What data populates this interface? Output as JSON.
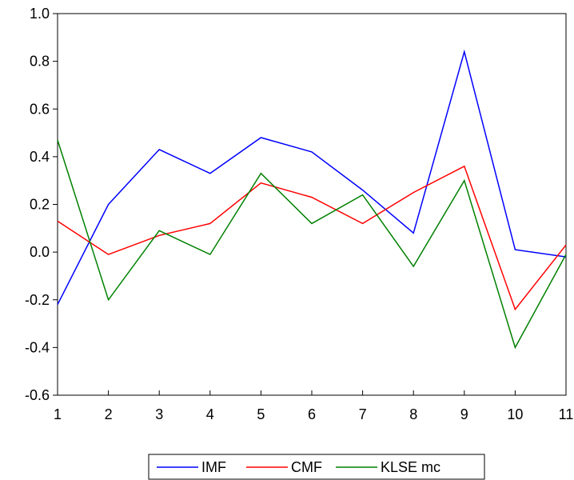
{
  "chart_data": {
    "type": "line",
    "title": "",
    "xlabel": "",
    "ylabel": "",
    "x": [
      1,
      2,
      3,
      4,
      5,
      6,
      7,
      8,
      9,
      10,
      11
    ],
    "xlim": [
      1,
      11
    ],
    "ylim": [
      -0.6,
      1.0
    ],
    "yticks": [
      -0.6,
      -0.4,
      -0.2,
      0.0,
      0.2,
      0.4,
      0.6,
      0.8,
      1.0
    ],
    "ytick_labels": [
      "-0.6",
      "-0.4",
      "-0.2",
      "0.0",
      "0.2",
      "0.4",
      "0.6",
      "0.8",
      "1.0"
    ],
    "xtick_labels": [
      "1",
      "2",
      "3",
      "4",
      "5",
      "6",
      "7",
      "8",
      "9",
      "10",
      "11"
    ],
    "grid": false,
    "legend_position": "bottom",
    "series": [
      {
        "name": "IMF",
        "color": "#0000ff",
        "values": [
          -0.22,
          0.2,
          0.43,
          0.33,
          0.48,
          0.42,
          0.26,
          0.08,
          0.84,
          0.01,
          -0.02
        ]
      },
      {
        "name": "CMF",
        "color": "#ff0000",
        "values": [
          0.13,
          -0.01,
          0.07,
          0.12,
          0.29,
          0.23,
          0.12,
          0.25,
          0.36,
          -0.24,
          0.03
        ]
      },
      {
        "name": "KLSE mc",
        "color": "#008000",
        "values": [
          0.47,
          -0.2,
          0.09,
          -0.01,
          0.33,
          0.12,
          0.24,
          -0.06,
          0.3,
          -0.4,
          -0.01
        ]
      }
    ]
  }
}
